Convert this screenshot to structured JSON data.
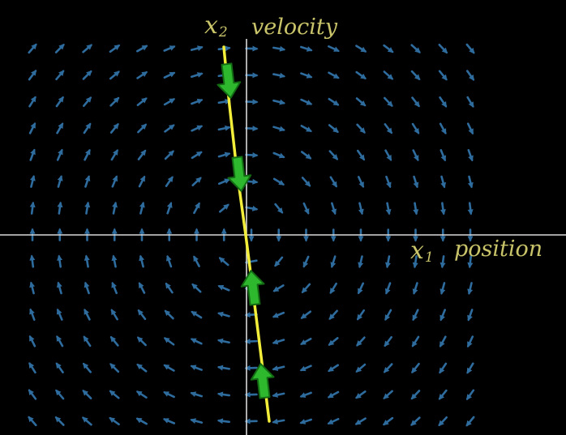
{
  "labels": {
    "x2_symbol": "x",
    "x2_subscript": "2",
    "x2_name": "velocity",
    "x1_symbol": "x",
    "x1_subscript": "1",
    "x1_name": "position"
  },
  "colors": {
    "background": "#000000",
    "axes": "#d9d9d9",
    "field_arrows": "#2f6c9e",
    "trajectory": "#f2ee3a",
    "direction_arrows": "#2eb82e",
    "label_text": "#c9c46a"
  },
  "field": {
    "description": "rotational vector field (clockwise)",
    "grid_columns": 17,
    "grid_rows": 15
  },
  "trajectory": {
    "direction_markers": [
      "down",
      "down",
      "up",
      "up"
    ]
  }
}
